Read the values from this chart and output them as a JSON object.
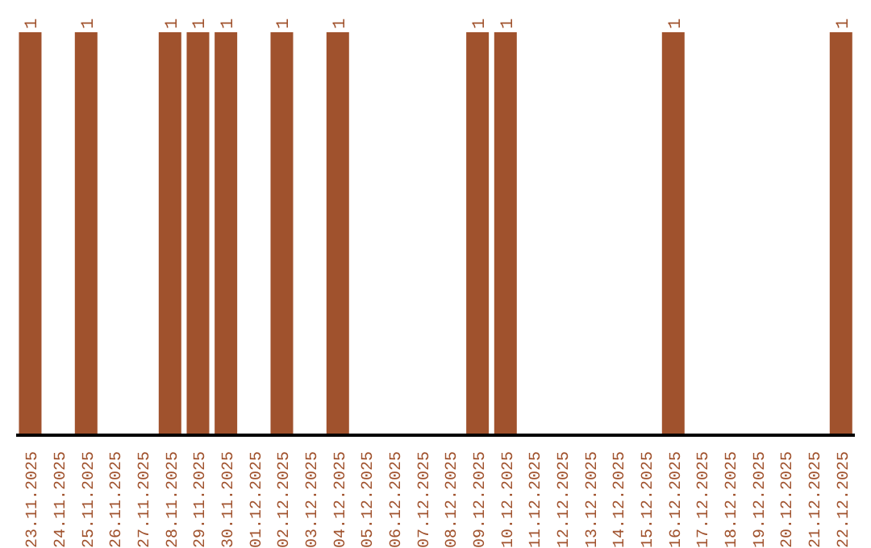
{
  "chart_data": {
    "type": "bar",
    "categories": [
      "23.11.2025",
      "24.11.2025",
      "25.11.2025",
      "26.11.2025",
      "27.11.2025",
      "28.11.2025",
      "29.11.2025",
      "30.11.2025",
      "01.12.2025",
      "02.12.2025",
      "03.12.2025",
      "04.12.2025",
      "05.12.2025",
      "06.12.2025",
      "07.12.2025",
      "08.12.2025",
      "09.12.2025",
      "10.12.2025",
      "11.12.2025",
      "12.12.2025",
      "13.12.2025",
      "14.12.2025",
      "15.12.2025",
      "16.12.2025",
      "17.12.2025",
      "18.12.2025",
      "19.12.2025",
      "20.12.2025",
      "21.12.2025",
      "22.12.2025"
    ],
    "values": [
      1,
      0,
      1,
      0,
      0,
      1,
      1,
      1,
      0,
      1,
      0,
      1,
      0,
      0,
      0,
      0,
      1,
      1,
      0,
      0,
      0,
      0,
      0,
      1,
      0,
      0,
      0,
      0,
      0,
      1
    ],
    "value_labels": [
      "1",
      null,
      "1",
      null,
      null,
      "1",
      "1",
      "1",
      null,
      "1",
      null,
      "1",
      null,
      null,
      null,
      null,
      "1",
      "1",
      null,
      null,
      null,
      null,
      null,
      "1",
      null,
      null,
      null,
      null,
      null,
      "1"
    ],
    "color": "#a0522d",
    "grid": false,
    "legend": false
  }
}
